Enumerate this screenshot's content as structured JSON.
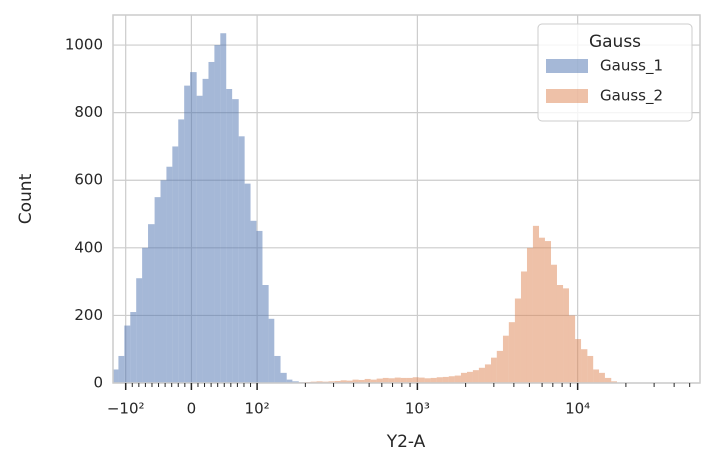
{
  "chart_data": {
    "type": "histogram",
    "xlabel": "Y2-A",
    "ylabel": "Count",
    "xscale": "symlog",
    "linthresh": 100,
    "linscale": 0.41,
    "xlim": [
      -120,
      58000
    ],
    "ylim": [
      0,
      1089
    ],
    "xticks": [
      {
        "value": -100,
        "label": "−10²"
      },
      0,
      {
        "value": 100,
        "label": "10²"
      },
      {
        "value": 1000,
        "label": "10³"
      },
      {
        "value": 10000,
        "label": "10⁴"
      }
    ],
    "xminorticks": [
      -90,
      -80,
      -70,
      -60,
      -50,
      -40,
      -30,
      -20,
      -10,
      10,
      20,
      30,
      40,
      50,
      60,
      70,
      80,
      90,
      200,
      300,
      400,
      500,
      600,
      700,
      800,
      900,
      2000,
      3000,
      4000,
      5000,
      6000,
      7000,
      8000,
      9000,
      20000,
      30000,
      40000,
      50000
    ],
    "yticks": [
      0,
      200,
      400,
      600,
      800,
      1000
    ],
    "grid": true,
    "legend_title": "Gauss",
    "legend_loc": "upper right",
    "bins": [
      -120,
      -111,
      -102,
      -93,
      -84,
      -75,
      -66,
      -56,
      -47,
      -38,
      -29,
      -20,
      -11,
      -2,
      8,
      17,
      26,
      35,
      44,
      53,
      62,
      72,
      81,
      90,
      99,
      108,
      118,
      128,
      140,
      153,
      166,
      182,
      198,
      216,
      235,
      256,
      279,
      305,
      332,
      362,
      394,
      430,
      469,
      511,
      557,
      608,
      662,
      722,
      787,
      859,
      935,
      1020,
      1110,
      1210,
      1320,
      1440,
      1570,
      1710,
      1870,
      2040,
      2220,
      2420,
      2640,
      2880,
      3130,
      3420,
      3720,
      4060,
      4430,
      4830,
      5260,
      5740,
      6250,
      6820,
      7430,
      8110,
      8830,
      9640,
      10500,
      11500,
      12500,
      13600,
      14800,
      16200,
      17600
    ],
    "series": [
      {
        "name": "Gauss_1",
        "color": "#4c72b0",
        "values": [
          40,
          80,
          170,
          210,
          310,
          400,
          470,
          550,
          600,
          640,
          700,
          780,
          880,
          920,
          850,
          900,
          950,
          1000,
          1035,
          870,
          840,
          730,
          590,
          480,
          450,
          290,
          190,
          80,
          30,
          10,
          5,
          2,
          1,
          0,
          0,
          0,
          0,
          2,
          2,
          2,
          2,
          0,
          0,
          0,
          0,
          0,
          0,
          0,
          0,
          0,
          0,
          0,
          0,
          0,
          0,
          0,
          0,
          0,
          0,
          0,
          0,
          0,
          0,
          0,
          0,
          0,
          0,
          0,
          0,
          0,
          0,
          0,
          0,
          0,
          0,
          0,
          0,
          0,
          0,
          0,
          0,
          0,
          0,
          0
        ]
      },
      {
        "name": "Gauss_2",
        "color": "#dd8452",
        "values": [
          0,
          0,
          0,
          0,
          0,
          0,
          0,
          0,
          0,
          0,
          0,
          0,
          0,
          0,
          0,
          0,
          0,
          0,
          0,
          0,
          0,
          0,
          0,
          0,
          0,
          0,
          0,
          0,
          0,
          0,
          0,
          2,
          3,
          4,
          5,
          4,
          5,
          6,
          8,
          7,
          10,
          9,
          12,
          10,
          13,
          15,
          14,
          16,
          15,
          15,
          17,
          16,
          14,
          15,
          17,
          18,
          20,
          22,
          30,
          33,
          38,
          45,
          55,
          75,
          95,
          140,
          180,
          250,
          330,
          400,
          465,
          430,
          420,
          350,
          290,
          280,
          200,
          130,
          100,
          80,
          40,
          30,
          15,
          5
        ]
      }
    ]
  }
}
